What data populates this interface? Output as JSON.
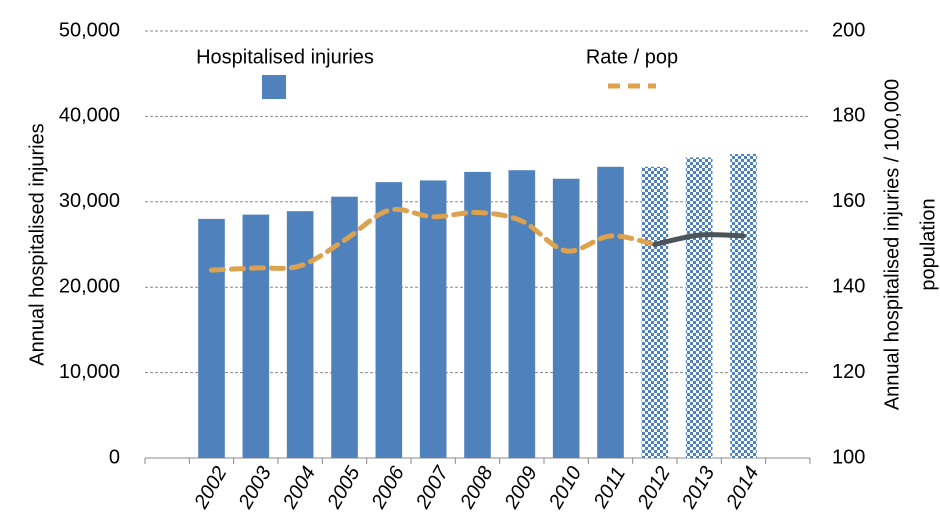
{
  "chart_data": {
    "type": "bar_line",
    "categories": [
      null,
      "2002",
      "2003",
      "2004",
      "2005",
      "2006",
      "2007",
      "2008",
      "2009",
      "2010",
      "2011",
      "2012",
      "2013",
      "2014",
      null
    ],
    "series": [
      {
        "name": "Hospitalised injuries",
        "type": "bar",
        "color": "#4f81bd",
        "values": [
          null,
          28000,
          28500,
          28900,
          30600,
          32300,
          32500,
          33500,
          33700,
          32700,
          34100,
          34100,
          35200,
          35600,
          null
        ]
      },
      {
        "name": "Rate / pop",
        "type": "line",
        "axis": "y2",
        "color": "#dda24f",
        "projection_color": "#4a5459",
        "values": [
          null,
          144,
          144.5,
          145,
          151,
          158,
          156.5,
          157.5,
          155.5,
          148.5,
          152,
          150,
          152.2,
          152,
          null
        ]
      }
    ],
    "projection_start": 11,
    "ylabel": "Annual hospitalised injuries",
    "y2label": [
      "Annual hospitalised injuries / 100,000",
      "population"
    ],
    "ylim": [
      0,
      50000
    ],
    "yticks": [
      0,
      {
        "value": 10000,
        "label": "10,000"
      },
      {
        "value": 20000,
        "label": "20,000"
      },
      {
        "value": 30000,
        "label": "30,000"
      },
      {
        "value": 40000,
        "label": "40,000"
      },
      {
        "value": 50000,
        "label": "50,000"
      }
    ],
    "y2lim": [
      100,
      200
    ],
    "y2ticks": [
      100,
      120,
      140,
      160,
      180,
      200
    ],
    "grid": true
  }
}
